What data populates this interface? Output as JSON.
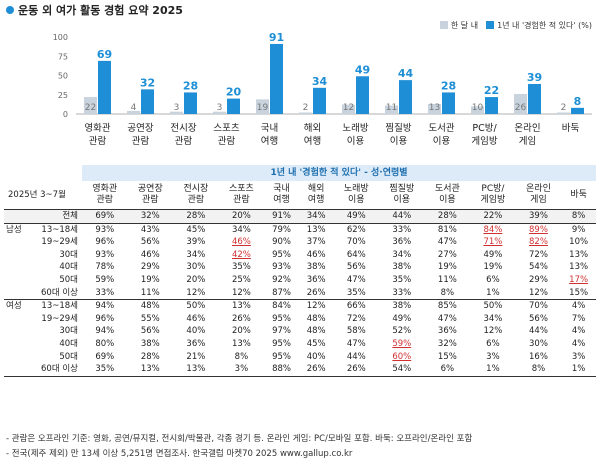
{
  "title": "운동 외 여가 활동 경험 요약 2025",
  "legend": {
    "month": "한 달 내",
    "ever": "1년 내 '경험한 적 있다' (%)"
  },
  "colors": {
    "month": "#c8d3de",
    "ever": "#1e8fd6",
    "header_band": "#dcebf7",
    "highlight": "#d03030",
    "row_shade": "#f2f2f2"
  },
  "chart_data": {
    "type": "bar",
    "ylim": [
      0,
      100
    ],
    "yticks": [
      0,
      25,
      50,
      75,
      100
    ],
    "categories": [
      "영화관\n관람",
      "공연장\n관람",
      "전시장\n관람",
      "스포츠\n관람",
      "국내\n여행",
      "해외\n여행",
      "노래방\n이용",
      "찜질방\n이용",
      "도서관\n이용",
      "PC방/\n게임방",
      "온라인\n게임",
      "바둑"
    ],
    "series": [
      {
        "name": "한 달 내",
        "values": [
          22,
          4,
          3,
          3,
          19,
          2,
          12,
          11,
          13,
          10,
          26,
          2
        ]
      },
      {
        "name": "1년 내 '경험한 적 있다' (%)",
        "values": [
          69,
          32,
          28,
          20,
          91,
          34,
          49,
          44,
          28,
          22,
          39,
          8
        ]
      }
    ]
  },
  "table": {
    "period": "2025년 3~7월",
    "band_title": "1년 내 '경험한 적 있다' - 성·연령별",
    "columns": [
      "영화관\n관람",
      "공연장\n관람",
      "전시장\n관람",
      "스포츠\n관람",
      "국내\n여행",
      "해외\n여행",
      "노래방\n이용",
      "찜질방\n이용",
      "도서관\n이용",
      "PC방/\n게임방",
      "온라인\n게임",
      "바둑"
    ],
    "total": {
      "label": "전체",
      "values": [
        "69%",
        "32%",
        "28%",
        "20%",
        "91%",
        "34%",
        "49%",
        "44%",
        "28%",
        "22%",
        "39%",
        "8%"
      ]
    },
    "groups": [
      {
        "name": "남성",
        "rows": [
          {
            "label": "13~18세",
            "values": [
              "93%",
              "43%",
              "45%",
              "34%",
              "79%",
              "13%",
              "62%",
              "33%",
              "81%",
              "84%",
              "89%",
              "9%"
            ],
            "hi": [
              9,
              10
            ]
          },
          {
            "label": "19~29세",
            "values": [
              "96%",
              "56%",
              "39%",
              "46%",
              "90%",
              "37%",
              "70%",
              "36%",
              "47%",
              "71%",
              "82%",
              "10%"
            ],
            "hi": [
              3,
              9,
              10
            ]
          },
          {
            "label": "30대",
            "values": [
              "93%",
              "46%",
              "34%",
              "42%",
              "95%",
              "46%",
              "64%",
              "34%",
              "27%",
              "49%",
              "72%",
              "13%"
            ],
            "hi": [
              3
            ]
          },
          {
            "label": "40대",
            "values": [
              "78%",
              "29%",
              "30%",
              "35%",
              "93%",
              "38%",
              "56%",
              "38%",
              "19%",
              "19%",
              "54%",
              "13%"
            ],
            "hi": []
          },
          {
            "label": "50대",
            "values": [
              "59%",
              "19%",
              "20%",
              "25%",
              "92%",
              "36%",
              "47%",
              "35%",
              "11%",
              "6%",
              "29%",
              "17%"
            ],
            "hi": [
              11
            ]
          },
          {
            "label": "60대 이상",
            "values": [
              "33%",
              "11%",
              "12%",
              "12%",
              "87%",
              "26%",
              "35%",
              "33%",
              "8%",
              "1%",
              "12%",
              "15%"
            ],
            "hi": []
          }
        ]
      },
      {
        "name": "여성",
        "rows": [
          {
            "label": "13~18세",
            "values": [
              "94%",
              "48%",
              "50%",
              "13%",
              "84%",
              "12%",
              "66%",
              "38%",
              "85%",
              "50%",
              "70%",
              "4%"
            ],
            "hi": []
          },
          {
            "label": "19~29세",
            "values": [
              "96%",
              "55%",
              "46%",
              "26%",
              "95%",
              "48%",
              "72%",
              "49%",
              "47%",
              "34%",
              "56%",
              "7%"
            ],
            "hi": []
          },
          {
            "label": "30대",
            "values": [
              "94%",
              "56%",
              "40%",
              "20%",
              "97%",
              "48%",
              "58%",
              "52%",
              "36%",
              "12%",
              "44%",
              "4%"
            ],
            "hi": []
          },
          {
            "label": "40대",
            "values": [
              "80%",
              "38%",
              "36%",
              "13%",
              "95%",
              "45%",
              "47%",
              "59%",
              "32%",
              "6%",
              "30%",
              "4%"
            ],
            "hi": [
              7
            ]
          },
          {
            "label": "50대",
            "values": [
              "69%",
              "28%",
              "21%",
              "8%",
              "95%",
              "40%",
              "44%",
              "60%",
              "15%",
              "3%",
              "16%",
              "3%"
            ],
            "hi": [
              7
            ]
          },
          {
            "label": "60대 이상",
            "values": [
              "35%",
              "13%",
              "13%",
              "3%",
              "88%",
              "26%",
              "26%",
              "54%",
              "6%",
              "1%",
              "8%",
              "1%"
            ],
            "hi": []
          }
        ]
      }
    ]
  },
  "footer": {
    "line1": "- 관람은 오프라인 기준: 영화, 공연/뮤지컬, 전시회/박물관, 각종 경기 등. 온라인 게임: PC/모바일 포함. 바둑: 오프라인/온라인 포함",
    "line2": "- 전국(제주 제외) 만 13세 이상 5,251명 면접조사. 한국갤럽 마켓70 2025 www.gallup.co.kr"
  }
}
